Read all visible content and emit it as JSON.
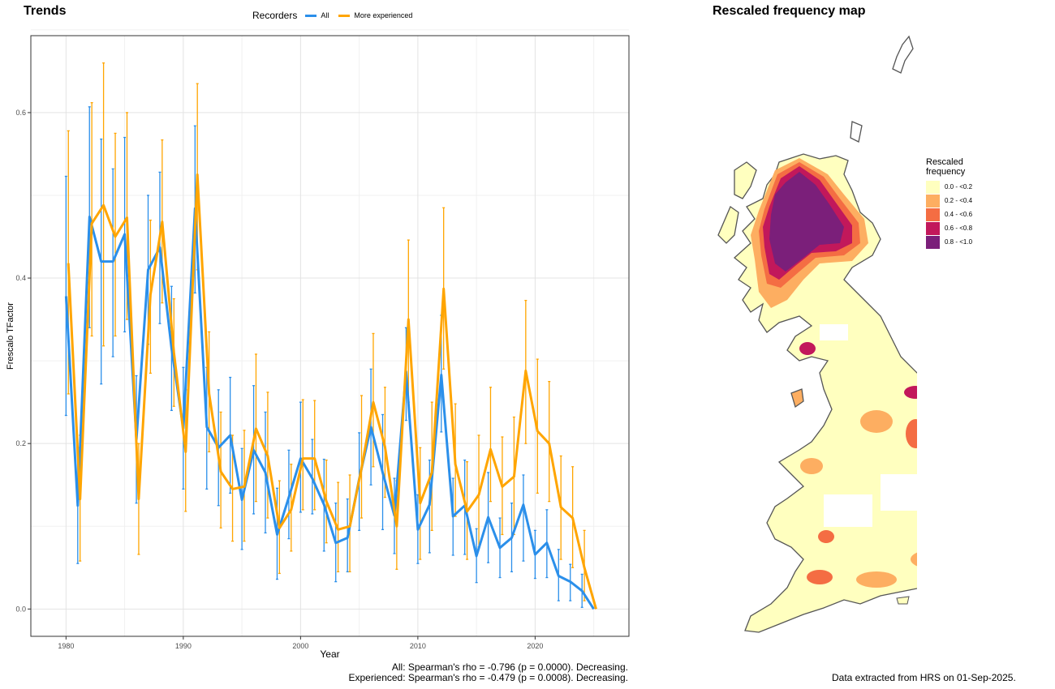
{
  "left_title": "Trends",
  "right_title": "Rescaled frequency map",
  "legend": {
    "title": "Recorders",
    "items": [
      {
        "label": "All",
        "color": "#2B8FEA"
      },
      {
        "label": "More experienced",
        "color": "#FFA500"
      }
    ]
  },
  "stats": {
    "line1": "All: Spearman's rho = -0.796 (p = 0.0000). Decreasing.",
    "line2": "Experienced: Spearman's rho = -0.479 (p = 0.0008). Decreasing."
  },
  "note": "Data extracted from HRS on 01-Sep-2025.",
  "map_legend": {
    "title_line1": "Rescaled",
    "title_line2": "frequency",
    "items": [
      {
        "label": "0.0 - <0.2",
        "color": "#FFFFBF"
      },
      {
        "label": "0.2 - <0.4",
        "color": "#FDAE61"
      },
      {
        "label": "0.4 - <0.6",
        "color": "#F46D43"
      },
      {
        "label": "0.6 - <0.8",
        "color": "#C2185B"
      },
      {
        "label": "0.8 - <1.0",
        "color": "#7B1F7A"
      }
    ]
  },
  "chart_data": {
    "type": "line",
    "xlabel": "Year",
    "ylabel": "Frescalo TFactor",
    "xlim": [
      1977,
      2028
    ],
    "ylim": [
      -0.033,
      0.693
    ],
    "xticks": [
      1980,
      1990,
      2000,
      2010,
      2020
    ],
    "yticks": [
      0.0,
      0.2,
      0.4,
      0.6
    ],
    "ytick_labels": [
      "0.0",
      "0.2",
      "0.4",
      "0.6"
    ],
    "grid": true,
    "legend_position": "top",
    "series": [
      {
        "name": "All",
        "color": "#2B8FEA",
        "x": [
          1980,
          1981,
          1982,
          1983,
          1984,
          1985,
          1986,
          1987,
          1988,
          1989,
          1990,
          1991,
          1992,
          1993,
          1994,
          1995,
          1996,
          1997,
          1998,
          1999,
          2000,
          2001,
          2002,
          2003,
          2004,
          2005,
          2006,
          2007,
          2008,
          2009,
          2010,
          2011,
          2012,
          2013,
          2014,
          2015,
          2016,
          2017,
          2018,
          2019,
          2020,
          2021,
          2022,
          2023,
          2024,
          2025
        ],
        "y": [
          0.378,
          0.125,
          0.474,
          0.42,
          0.42,
          0.453,
          0.205,
          0.41,
          0.437,
          0.315,
          0.218,
          0.484,
          0.22,
          0.195,
          0.21,
          0.132,
          0.192,
          0.165,
          0.09,
          0.135,
          0.182,
          0.158,
          0.126,
          0.08,
          0.086,
          0.157,
          0.22,
          0.165,
          0.113,
          0.287,
          0.096,
          0.126,
          0.283,
          0.112,
          0.125,
          0.064,
          0.111,
          0.074,
          0.086,
          0.126,
          0.066,
          0.08,
          0.04,
          0.033,
          0.022,
          0.0
        ],
        "lower": [
          0.234,
          0.055,
          0.34,
          0.272,
          0.305,
          0.335,
          0.128,
          0.32,
          0.345,
          0.24,
          0.145,
          0.382,
          0.145,
          0.125,
          0.14,
          0.072,
          0.115,
          0.092,
          0.036,
          0.085,
          0.117,
          0.115,
          0.07,
          0.033,
          0.045,
          0.095,
          0.15,
          0.096,
          0.067,
          0.228,
          0.055,
          0.068,
          0.214,
          0.065,
          0.066,
          0.032,
          0.056,
          0.038,
          0.045,
          0.058,
          0.037,
          0.038,
          0.01,
          0.01,
          0.002,
          0.0
        ],
        "upper": [
          0.523,
          0.195,
          0.607,
          0.568,
          0.532,
          0.57,
          0.282,
          0.5,
          0.528,
          0.39,
          0.292,
          0.584,
          0.292,
          0.265,
          0.28,
          0.194,
          0.27,
          0.238,
          0.146,
          0.192,
          0.25,
          0.205,
          0.181,
          0.128,
          0.133,
          0.213,
          0.29,
          0.235,
          0.158,
          0.34,
          0.138,
          0.18,
          0.355,
          0.158,
          0.18,
          0.097,
          0.165,
          0.11,
          0.128,
          0.162,
          0.095,
          0.12,
          0.072,
          0.054,
          0.042,
          0.0
        ]
      },
      {
        "name": "More experienced",
        "color": "#FFA500",
        "x": [
          1980,
          1981,
          1982,
          1983,
          1984,
          1985,
          1986,
          1987,
          1988,
          1989,
          1990,
          1991,
          1992,
          1993,
          1994,
          1995,
          1996,
          1997,
          1998,
          1999,
          2000,
          2001,
          2002,
          2003,
          2004,
          2005,
          2006,
          2007,
          2008,
          2009,
          2010,
          2011,
          2012,
          2013,
          2014,
          2015,
          2016,
          2017,
          2018,
          2019,
          2020,
          2021,
          2022,
          2023,
          2024,
          2025
        ],
        "y": [
          0.418,
          0.133,
          0.466,
          0.488,
          0.45,
          0.473,
          0.133,
          0.38,
          0.468,
          0.31,
          0.19,
          0.525,
          0.26,
          0.166,
          0.145,
          0.148,
          0.218,
          0.185,
          0.098,
          0.12,
          0.182,
          0.182,
          0.13,
          0.096,
          0.1,
          0.17,
          0.25,
          0.196,
          0.1,
          0.35,
          0.128,
          0.165,
          0.387,
          0.175,
          0.118,
          0.138,
          0.193,
          0.148,
          0.16,
          0.288,
          0.215,
          0.2,
          0.123,
          0.11,
          0.05,
          0.0
        ],
        "lower": [
          0.26,
          0.058,
          0.33,
          0.318,
          0.33,
          0.35,
          0.066,
          0.285,
          0.37,
          0.245,
          0.118,
          0.41,
          0.19,
          0.098,
          0.082,
          0.082,
          0.13,
          0.11,
          0.043,
          0.07,
          0.12,
          0.12,
          0.08,
          0.045,
          0.045,
          0.11,
          0.172,
          0.135,
          0.048,
          0.25,
          0.06,
          0.095,
          0.29,
          0.112,
          0.06,
          0.075,
          0.13,
          0.09,
          0.09,
          0.2,
          0.14,
          0.13,
          0.06,
          0.05,
          0.01,
          0.0
        ],
        "upper": [
          0.578,
          0.21,
          0.612,
          0.66,
          0.575,
          0.6,
          0.2,
          0.47,
          0.567,
          0.375,
          0.265,
          0.635,
          0.335,
          0.238,
          0.21,
          0.216,
          0.308,
          0.262,
          0.155,
          0.175,
          0.253,
          0.252,
          0.18,
          0.153,
          0.162,
          0.258,
          0.333,
          0.268,
          0.155,
          0.446,
          0.195,
          0.25,
          0.485,
          0.248,
          0.178,
          0.21,
          0.268,
          0.208,
          0.232,
          0.373,
          0.302,
          0.275,
          0.185,
          0.172,
          0.095,
          0.0
        ]
      }
    ]
  }
}
